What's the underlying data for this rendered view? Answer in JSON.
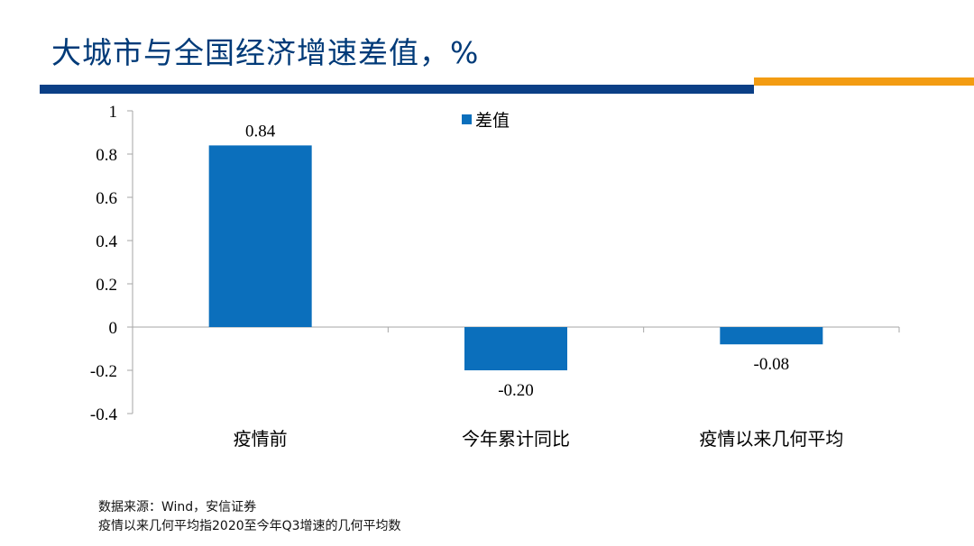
{
  "slide": {
    "title": "大城市与全国经济增速差值，%",
    "accent_blue": "#0b3f86",
    "accent_orange": "#f39c12"
  },
  "notes": {
    "source": "数据来源：Wind，安信证券",
    "footnote": "疫情以来几何平均指2020至今年Q3增速的几何平均数"
  },
  "chart_data": {
    "type": "bar",
    "title": "大城市与全国经济增速差值，%",
    "categories": [
      "疫情前",
      "今年累计同比",
      "疫情以来几何平均"
    ],
    "series": [
      {
        "name": "差值",
        "values": [
          0.84,
          -0.2,
          -0.08
        ],
        "labels": [
          "0.84",
          "-0.20",
          "-0.08"
        ],
        "color": "#0b6fbc"
      }
    ],
    "ylim": [
      -0.4,
      1
    ],
    "yticks": [
      1,
      0.8,
      0.6,
      0.4,
      0.2,
      0,
      -0.2,
      -0.4
    ],
    "ytick_labels": [
      "1",
      "0.8",
      "0.6",
      "0.4",
      "0.2",
      "0",
      "-0.2",
      "-0.4"
    ],
    "grid": false,
    "legend_position": "top-center"
  }
}
